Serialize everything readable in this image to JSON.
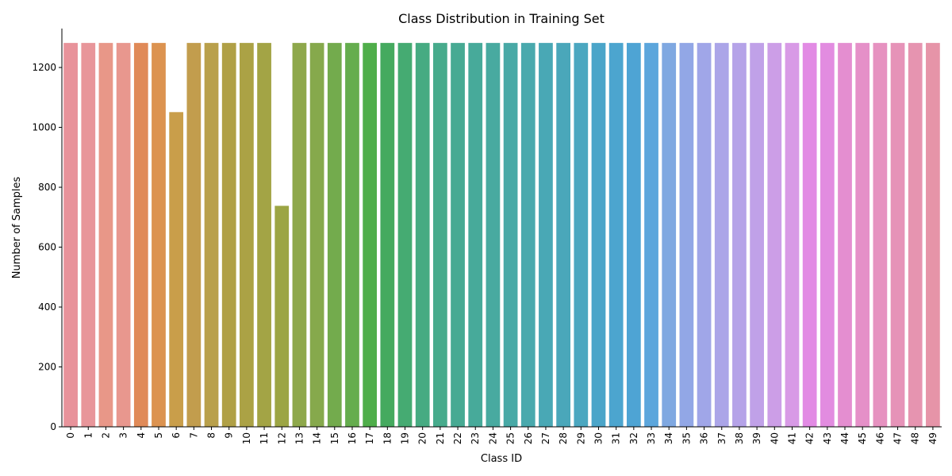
{
  "chart_data": {
    "type": "bar",
    "title": "Class Distribution in Training Set",
    "xlabel": "Class ID",
    "ylabel": "Number of Samples",
    "ylim": [
      0,
      1330
    ],
    "yticks": [
      0,
      200,
      400,
      600,
      800,
      1000,
      1200
    ],
    "grid": false,
    "legend": "none",
    "categories": [
      "0",
      "1",
      "2",
      "3",
      "4",
      "5",
      "6",
      "7",
      "8",
      "9",
      "10",
      "11",
      "12",
      "13",
      "14",
      "15",
      "16",
      "17",
      "18",
      "19",
      "20",
      "21",
      "22",
      "23",
      "24",
      "25",
      "26",
      "27",
      "28",
      "29",
      "30",
      "31",
      "32",
      "33",
      "34",
      "35",
      "36",
      "37",
      "38",
      "39",
      "40",
      "41",
      "42",
      "43",
      "44",
      "45",
      "46",
      "47",
      "48",
      "49"
    ],
    "values": [
      1282,
      1282,
      1282,
      1282,
      1282,
      1282,
      1051,
      1282,
      1282,
      1282,
      1282,
      1282,
      738,
      1282,
      1282,
      1282,
      1282,
      1282,
      1282,
      1282,
      1282,
      1282,
      1282,
      1282,
      1282,
      1282,
      1282,
      1282,
      1282,
      1282,
      1282,
      1282,
      1282,
      1282,
      1282,
      1282,
      1282,
      1282,
      1282,
      1282,
      1282,
      1282,
      1282,
      1282,
      1282,
      1282,
      1282,
      1282,
      1282,
      1282
    ],
    "colors": [
      "#e8939b",
      "#e8969a",
      "#e89788",
      "#e8978e",
      "#e08a58",
      "#dc9350",
      "#c99e4a",
      "#c29d4d",
      "#b9a04b",
      "#b0a046",
      "#aba245",
      "#a3a445",
      "#9ca544",
      "#8ea84b",
      "#86a94c",
      "#73ab4d",
      "#65ad4e",
      "#4fae4a",
      "#45aa5f",
      "#45ab72",
      "#46ab82",
      "#47ab8c",
      "#47aa93",
      "#47aa9a",
      "#48aaa0",
      "#48a9a6",
      "#49a9ad",
      "#49a8b5",
      "#4aa7ba",
      "#4ba7c0",
      "#4ba5c9",
      "#4ca5cf",
      "#4ea4d4",
      "#5ca6dc",
      "#7fa8e1",
      "#92a7e6",
      "#a0a6e8",
      "#aba5e8",
      "#b5a3e8",
      "#c0a1e8",
      "#cc9ee7",
      "#d89ae6",
      "#e28be4",
      "#e28ce0",
      "#e48ed0",
      "#e590c8",
      "#e692c0",
      "#e693b8",
      "#e694b0",
      "#e694a8"
    ]
  }
}
